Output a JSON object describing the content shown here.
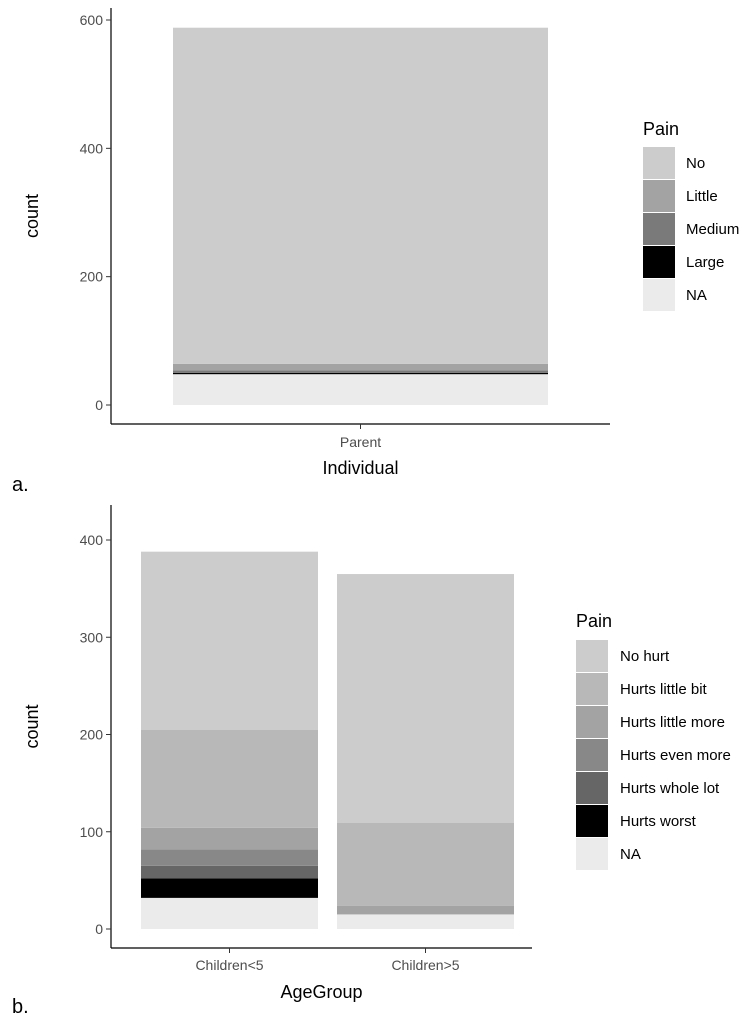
{
  "chart_data": [
    {
      "panel_label": "a.",
      "type": "bar",
      "stacked": true,
      "xlabel": "Individual",
      "ylabel": "count",
      "categories": [
        "Parent"
      ],
      "ylim": [
        0,
        600
      ],
      "yticks": [
        0,
        200,
        400,
        600
      ],
      "legend": {
        "title": "Pain",
        "position": "right"
      },
      "series": [
        {
          "name": "No",
          "color": "#cccccc",
          "values": [
            524
          ]
        },
        {
          "name": "Little",
          "color": "#a3a3a3",
          "values": [
            10
          ]
        },
        {
          "name": "Medium",
          "color": "#7a7a7a",
          "values": [
            4
          ]
        },
        {
          "name": "Large",
          "color": "#000000",
          "values": [
            2
          ]
        },
        {
          "name": "NA",
          "color": "#ebebeb",
          "values": [
            48
          ]
        }
      ]
    },
    {
      "panel_label": "b.",
      "type": "bar",
      "stacked": true,
      "xlabel": "AgeGroup",
      "ylabel": "count",
      "categories": [
        "Children<5",
        "Children>5"
      ],
      "ylim": [
        0,
        400
      ],
      "yticks": [
        0,
        100,
        200,
        300,
        400
      ],
      "legend": {
        "title": "Pain",
        "position": "right"
      },
      "series": [
        {
          "name": "No hurt",
          "color": "#cccccc",
          "values": [
            183,
            256
          ]
        },
        {
          "name": "Hurts little bit",
          "color": "#b8b8b8",
          "values": [
            101,
            85
          ]
        },
        {
          "name": "Hurts little more",
          "color": "#a3a3a3",
          "values": [
            22,
            9
          ]
        },
        {
          "name": "Hurts even more",
          "color": "#888888",
          "values": [
            17,
            0
          ]
        },
        {
          "name": "Hurts whole lot",
          "color": "#666666",
          "values": [
            13,
            0
          ]
        },
        {
          "name": "Hurts worst",
          "color": "#000000",
          "values": [
            20,
            0
          ]
        },
        {
          "name": "NA",
          "color": "#ebebeb",
          "values": [
            32,
            15
          ]
        }
      ]
    }
  ]
}
